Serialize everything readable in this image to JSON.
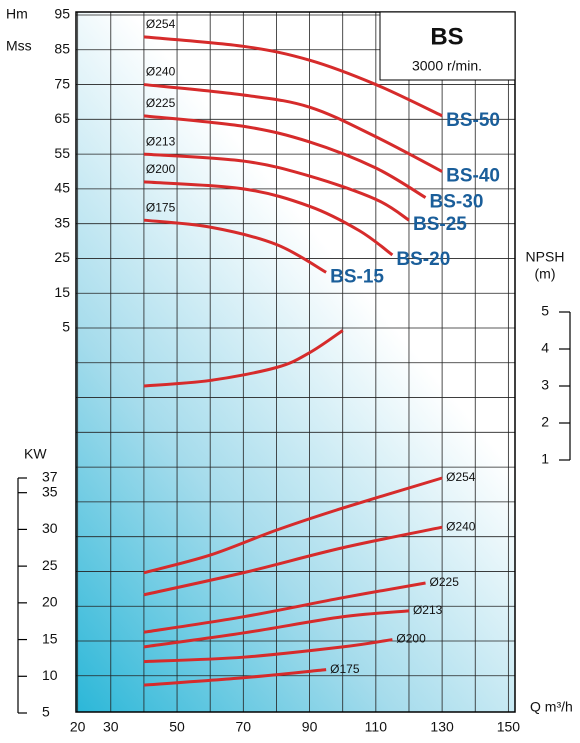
{
  "chart_data": {
    "type": "line",
    "title": "BS",
    "subtitle": "3000 r/min.",
    "x_label": "Q m³/h",
    "xlim": [
      19.5,
      152
    ],
    "xticks": [
      20,
      30,
      50,
      70,
      90,
      110,
      130,
      150
    ],
    "minor_xticks": [
      40,
      60,
      80,
      100,
      120,
      140
    ],
    "curve_color": "#d62b2b",
    "grid": true,
    "head": {
      "y_label": [
        "Hm",
        "Mss"
      ],
      "ylim": [
        5,
        95
      ],
      "yticks": [
        95,
        85,
        75,
        65,
        55,
        45,
        35,
        25,
        15,
        5
      ],
      "series": [
        {
          "name": "Ø254",
          "model": "BS-50",
          "x": [
            40,
            70,
            90,
            110,
            130
          ],
          "values": [
            88.7,
            86,
            82,
            75,
            66
          ]
        },
        {
          "name": "Ø240",
          "model": "BS-40",
          "x": [
            40,
            70,
            90,
            110,
            130
          ],
          "values": [
            75,
            72,
            68.5,
            60,
            50
          ]
        },
        {
          "name": "Ø225",
          "model": "BS-30",
          "x": [
            40,
            70,
            90,
            110,
            125
          ],
          "values": [
            66,
            63,
            58.5,
            51,
            42.5
          ]
        },
        {
          "name": "Ø213",
          "model": "BS-25",
          "x": [
            40,
            70,
            90,
            110,
            120
          ],
          "values": [
            55,
            53,
            48.7,
            42,
            36
          ]
        },
        {
          "name": "Ø200",
          "model": "BS-20",
          "x": [
            40,
            70,
            90,
            105,
            115
          ],
          "values": [
            47,
            45,
            40,
            33,
            26
          ]
        },
        {
          "name": "Ø175",
          "model": "BS-15",
          "x": [
            40,
            60,
            80,
            95
          ],
          "values": [
            36,
            34,
            29,
            21
          ]
        }
      ]
    },
    "npsh": {
      "y_label": [
        "NPSH",
        "(m)"
      ],
      "ylim": [
        1,
        5
      ],
      "yticks": [
        5,
        4,
        3,
        2,
        1
      ],
      "x": [
        40,
        60,
        80,
        90,
        100
      ],
      "values": [
        3.0,
        3.15,
        3.5,
        3.9,
        4.5
      ]
    },
    "power": {
      "y_label": "KW",
      "ylim": [
        5,
        37
      ],
      "yticks": [
        37,
        35,
        30,
        25,
        20,
        15,
        10,
        5
      ],
      "series": [
        {
          "name": "Ø254",
          "x": [
            40,
            60,
            80,
            100,
            130
          ],
          "values": [
            24.1,
            26.5,
            29.9,
            32.9,
            37
          ]
        },
        {
          "name": "Ø240",
          "x": [
            40,
            70,
            100,
            130
          ],
          "values": [
            21.1,
            24.1,
            27.5,
            30.3
          ]
        },
        {
          "name": "Ø225",
          "x": [
            40,
            70,
            100,
            125
          ],
          "values": [
            16,
            18.1,
            20.7,
            22.7
          ]
        },
        {
          "name": "Ø213",
          "x": [
            40,
            70,
            100,
            120
          ],
          "values": [
            14,
            15.9,
            18.1,
            18.9
          ]
        },
        {
          "name": "Ø200",
          "x": [
            40,
            70,
            100,
            115
          ],
          "values": [
            12,
            12.6,
            14,
            15
          ]
        },
        {
          "name": "Ø175",
          "x": [
            40,
            70,
            95
          ],
          "values": [
            8.8,
            9.8,
            10.9
          ]
        }
      ]
    }
  }
}
